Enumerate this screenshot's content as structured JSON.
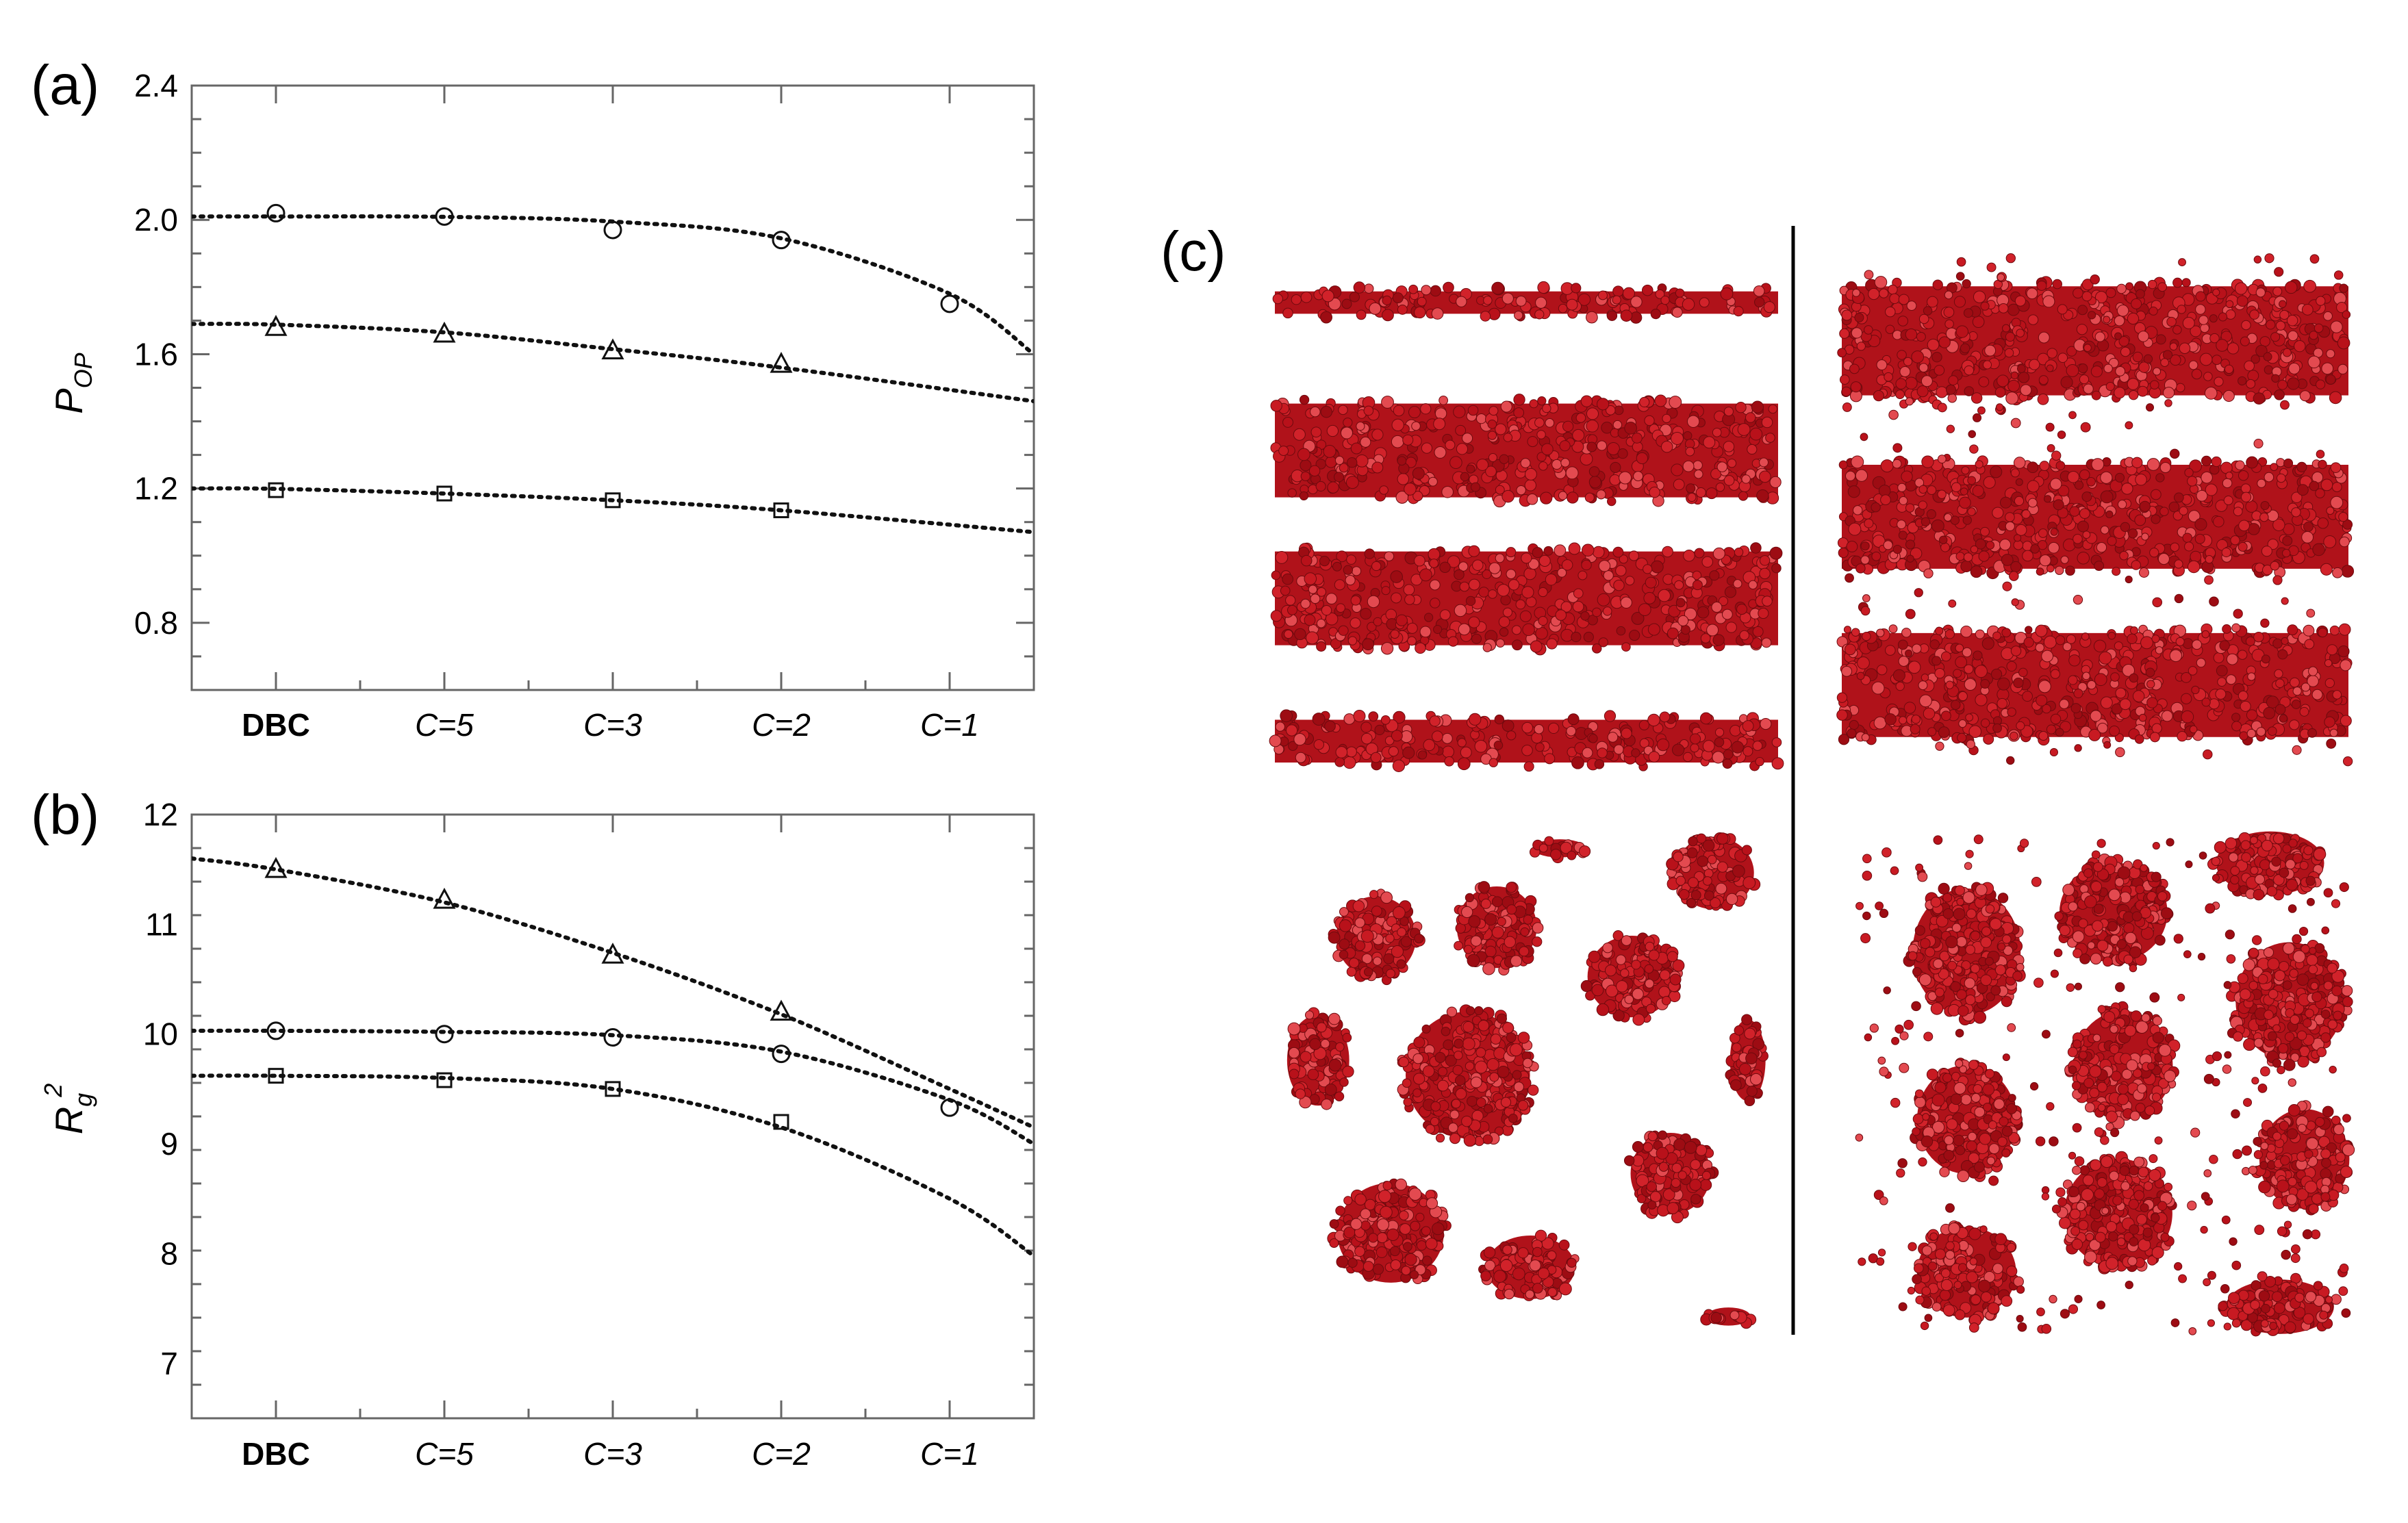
{
  "colors": {
    "ink": "#000000",
    "sphere": "#c0141c",
    "sphere_dark": "#7a0a10",
    "sphere_light": "#e0464c"
  },
  "panels": {
    "a": "(a)",
    "b": "(b)",
    "c": "(c)"
  },
  "chart_data": [
    {
      "type": "scatter",
      "panel": "a",
      "title": "",
      "xlabel": "",
      "ylabel": {
        "main": "P",
        "sub": "OP"
      },
      "categories": [
        "DBC",
        "C=5",
        "C=3",
        "C=2",
        "C=1"
      ],
      "italic_categories": [
        "C=5",
        "C=3",
        "C=2",
        "C=1"
      ],
      "ylim": [
        0.6,
        2.4
      ],
      "yticks": [
        "0.8",
        "1.2",
        "1.6",
        "2.0",
        "2.4"
      ],
      "series": [
        {
          "marker": "circle",
          "points": [
            2.02,
            2.01,
            1.97,
            1.94,
            1.75
          ],
          "fit": [
            [
              -0.5,
              2.01
            ],
            [
              0,
              2.01
            ],
            [
              1,
              2.009
            ],
            [
              2,
              1.995
            ],
            [
              3,
              1.945
            ],
            [
              4,
              1.78
            ],
            [
              4.5,
              1.6
            ]
          ]
        },
        {
          "marker": "triangle",
          "points": [
            1.68,
            1.66,
            1.61,
            1.57,
            null
          ],
          "fit": [
            [
              -0.5,
              1.69
            ],
            [
              0,
              1.688
            ],
            [
              1,
              1.665
            ],
            [
              2,
              1.615
            ],
            [
              3,
              1.56
            ],
            [
              4.5,
              1.46
            ]
          ]
        },
        {
          "marker": "square",
          "points": [
            1.195,
            1.185,
            1.165,
            1.135,
            null
          ],
          "fit": [
            [
              -0.5,
              1.2
            ],
            [
              0,
              1.199
            ],
            [
              1,
              1.185
            ],
            [
              2,
              1.165
            ],
            [
              3,
              1.135
            ],
            [
              4.5,
              1.07
            ]
          ]
        }
      ]
    },
    {
      "type": "scatter",
      "panel": "b",
      "title": "",
      "xlabel": "",
      "ylabel": {
        "main": "R",
        "sub": "g",
        "sup": "2"
      },
      "categories": [
        "DBC",
        "C=5",
        "C=3",
        "C=2",
        "C=1"
      ],
      "italic_categories": [
        "C=5",
        "C=3",
        "C=2",
        "C=1"
      ],
      "ylim": [
        6.5,
        12
      ],
      "yticks": [
        "7",
        "8",
        "9",
        "10",
        "11",
        "12"
      ],
      "series": [
        {
          "marker": "triangle",
          "points": [
            11.5,
            11.22,
            10.72,
            10.2,
            null
          ],
          "fit": [
            [
              -0.5,
              11.6
            ],
            [
              0,
              11.5
            ],
            [
              1,
              11.2
            ],
            [
              2,
              10.74
            ],
            [
              3,
              10.18
            ],
            [
              4,
              9.5
            ],
            [
              4.5,
              9.15
            ]
          ]
        },
        {
          "marker": "circle",
          "points": [
            10.03,
            10.0,
            9.97,
            9.82,
            9.33
          ],
          "fit": [
            [
              -0.5,
              10.03
            ],
            [
              0,
              10.03
            ],
            [
              1,
              10.02
            ],
            [
              2,
              9.99
            ],
            [
              3,
              9.84
            ],
            [
              4,
              9.4
            ],
            [
              4.5,
              9.0
            ]
          ]
        },
        {
          "marker": "square",
          "points": [
            9.62,
            9.58,
            9.5,
            9.2,
            null
          ],
          "fit": [
            [
              -0.5,
              9.62
            ],
            [
              0,
              9.62
            ],
            [
              1,
              9.6
            ],
            [
              2,
              9.5
            ],
            [
              3,
              9.15
            ],
            [
              4,
              8.5
            ],
            [
              4.5,
              7.98
            ]
          ]
        }
      ]
    }
  ],
  "snapshots": [
    {
      "name": "lamellar-snapshot-left",
      "kind": "lamellar",
      "free_particles": false,
      "slabs": [
        [
          0.06,
          0.12
        ],
        [
          0.28,
          0.48
        ],
        [
          0.57,
          0.77
        ],
        [
          0.9,
          1.0
        ]
      ]
    },
    {
      "name": "lamellar-snapshot-right",
      "kind": "lamellar",
      "free_particles": true,
      "slabs": [
        [
          0.05,
          0.28
        ],
        [
          0.4,
          0.62
        ],
        [
          0.73,
          0.95
        ]
      ]
    },
    {
      "name": "cylinder-snapshot-left",
      "kind": "cylinders",
      "free_particles": false,
      "domains": [
        [
          0.55,
          0.02,
          0.06,
          0.02
        ],
        [
          0.87,
          0.07,
          0.09,
          0.08
        ],
        [
          0.17,
          0.2,
          0.09,
          0.09
        ],
        [
          0.42,
          0.18,
          0.09,
          0.09
        ],
        [
          0.7,
          0.28,
          0.1,
          0.09
        ],
        [
          0.05,
          0.45,
          0.07,
          0.1
        ],
        [
          0.36,
          0.48,
          0.14,
          0.14
        ],
        [
          0.94,
          0.45,
          0.04,
          0.09
        ],
        [
          0.78,
          0.68,
          0.09,
          0.09
        ],
        [
          0.2,
          0.8,
          0.12,
          0.11
        ],
        [
          0.49,
          0.87,
          0.1,
          0.07
        ],
        [
          0.9,
          0.97,
          0.05,
          0.02
        ]
      ]
    },
    {
      "name": "cylinder-snapshot-right",
      "kind": "cylinders",
      "free_particles": true,
      "domains": [
        [
          0.84,
          0.05,
          0.12,
          0.07
        ],
        [
          0.22,
          0.23,
          0.12,
          0.14
        ],
        [
          0.52,
          0.15,
          0.12,
          0.11
        ],
        [
          0.88,
          0.33,
          0.12,
          0.13
        ],
        [
          0.54,
          0.46,
          0.11,
          0.12
        ],
        [
          0.22,
          0.57,
          0.11,
          0.12
        ],
        [
          0.91,
          0.65,
          0.1,
          0.11
        ],
        [
          0.53,
          0.76,
          0.12,
          0.12
        ],
        [
          0.22,
          0.88,
          0.11,
          0.1
        ],
        [
          0.86,
          0.95,
          0.12,
          0.06
        ]
      ]
    }
  ]
}
